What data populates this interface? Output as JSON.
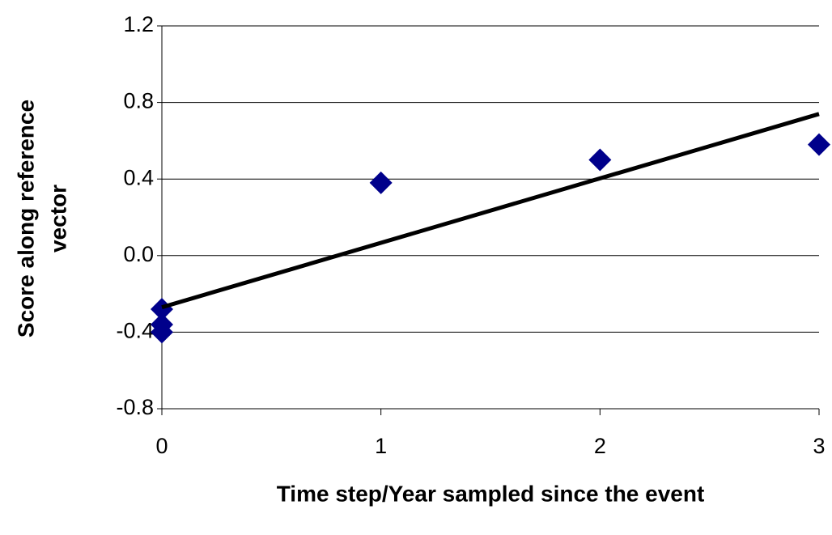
{
  "chart_data": {
    "type": "scatter",
    "x_label": "Time step/Year sampled since the event",
    "y_label": [
      "Score along reference",
      "vector"
    ],
    "points": {
      "color": "#00008b",
      "x": [
        0,
        0,
        0,
        1,
        2,
        3
      ],
      "values": [
        -0.28,
        -0.36,
        -0.4,
        0.38,
        0.5,
        0.58
      ]
    },
    "trendline": {
      "color": "#000000",
      "x": [
        0,
        3
      ],
      "values": [
        -0.27,
        0.74
      ]
    },
    "xlim": [
      0,
      3
    ],
    "xticks": [
      0,
      1,
      2,
      3
    ],
    "ylim": [
      -0.8,
      1.2
    ],
    "yticks": [
      -0.8,
      -0.4,
      {
        "value": 0,
        "label": "0.0"
      },
      0.4,
      0.8,
      1.2
    ],
    "grid": true
  }
}
